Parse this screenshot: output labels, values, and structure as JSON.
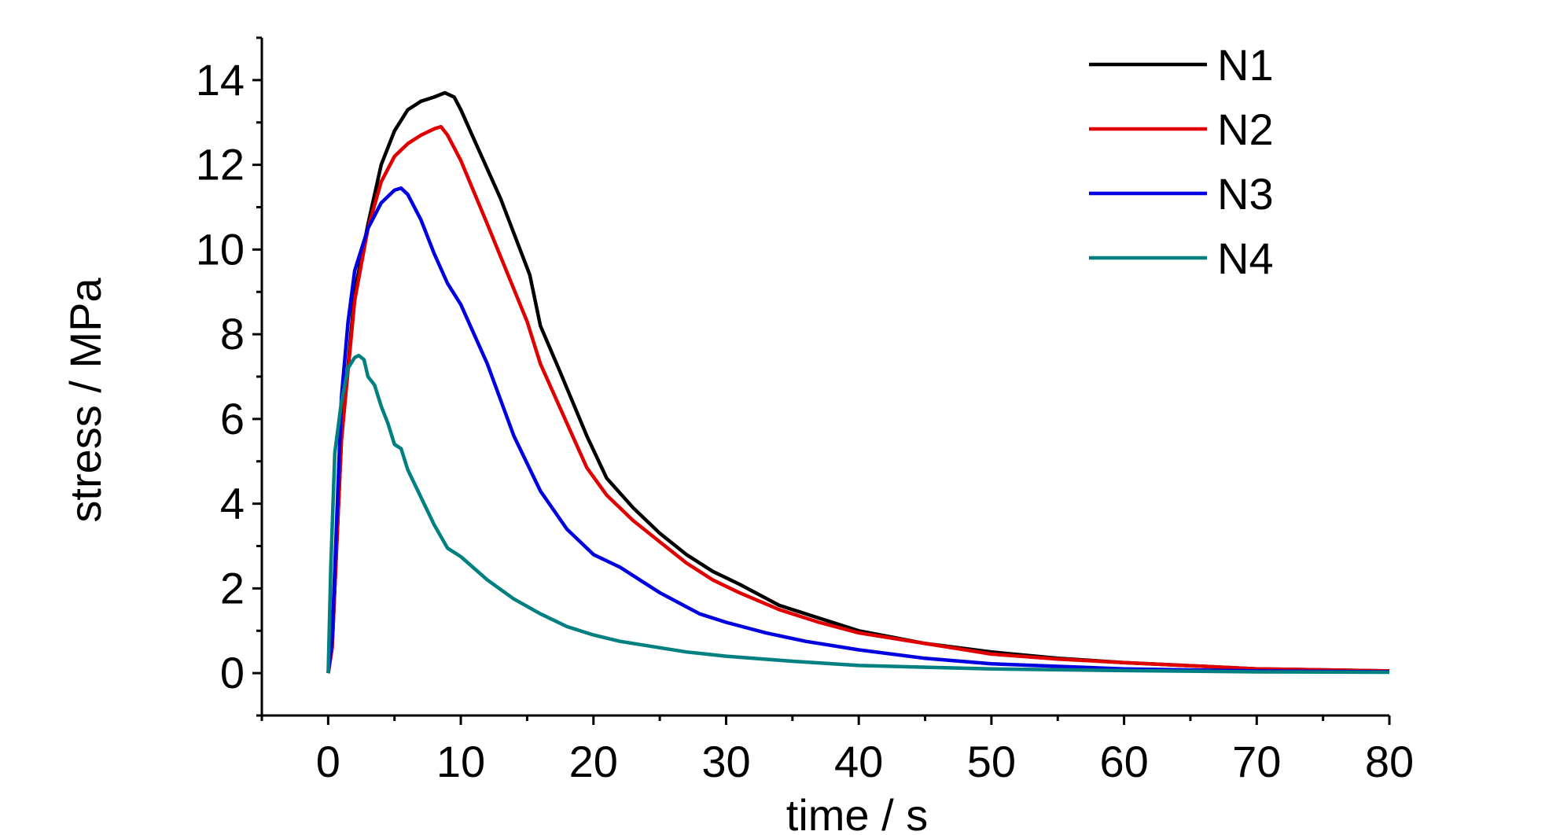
{
  "chart_data": {
    "type": "line",
    "title": "",
    "xlabel": "time / s",
    "ylabel": "stress / MPa",
    "xlim": [
      -5,
      80
    ],
    "ylim": [
      -1,
      15
    ],
    "x_ticks": [
      0,
      10,
      20,
      30,
      40,
      50,
      60,
      70,
      80
    ],
    "y_ticks": [
      0,
      2,
      4,
      6,
      8,
      10,
      12,
      14
    ],
    "x_tick_labels": [
      "0",
      "10",
      "20",
      "30",
      "40",
      "50",
      "60",
      "70",
      "80"
    ],
    "y_tick_labels": [
      "0",
      "2",
      "4",
      "6",
      "8",
      "10",
      "12",
      "14"
    ],
    "grid": false,
    "legend_position": "top-right",
    "series": [
      {
        "name": "N1",
        "color": "#000000",
        "x": [
          0,
          0.3,
          1,
          2,
          3,
          4,
          5,
          6,
          7,
          8,
          8.8,
          9.5,
          10,
          11,
          13,
          15.2,
          16,
          17.5,
          19.5,
          21,
          23,
          25,
          27,
          29,
          31,
          34,
          37,
          40,
          45,
          50,
          55,
          60,
          70,
          80
        ],
        "y": [
          0,
          0.6,
          5.5,
          9.0,
          10.6,
          12.0,
          12.8,
          13.3,
          13.5,
          13.6,
          13.7,
          13.6,
          13.3,
          12.6,
          11.2,
          9.4,
          8.2,
          7.1,
          5.6,
          4.6,
          3.9,
          3.3,
          2.8,
          2.4,
          2.1,
          1.6,
          1.3,
          1.0,
          0.7,
          0.5,
          0.35,
          0.25,
          0.1,
          0.05
        ]
      },
      {
        "name": "N2",
        "color": "#e00000",
        "x": [
          0,
          0.3,
          1,
          2,
          3,
          4,
          5,
          6,
          7,
          8,
          8.5,
          9,
          10,
          12,
          15,
          16,
          18,
          19.5,
          21,
          23,
          25,
          27,
          29,
          31,
          34,
          37,
          40,
          45,
          50,
          55,
          60,
          70,
          80
        ],
        "y": [
          0,
          0.6,
          5.5,
          8.8,
          10.5,
          11.6,
          12.2,
          12.5,
          12.7,
          12.85,
          12.9,
          12.7,
          12.1,
          10.6,
          8.3,
          7.3,
          5.9,
          4.85,
          4.2,
          3.6,
          3.1,
          2.6,
          2.2,
          1.9,
          1.5,
          1.2,
          0.95,
          0.7,
          0.45,
          0.33,
          0.25,
          0.1,
          0.05
        ]
      },
      {
        "name": "N3",
        "color": "#0000e0",
        "x": [
          0,
          0.3,
          1,
          1.5,
          2,
          3,
          4,
          5,
          5.5,
          6,
          7,
          8,
          9,
          10,
          12,
          14,
          16,
          18,
          20,
          22,
          25,
          28,
          30,
          33,
          36,
          40,
          45,
          50,
          60,
          70,
          80
        ],
        "y": [
          0,
          0.8,
          6.5,
          8.3,
          9.5,
          10.5,
          11.1,
          11.4,
          11.45,
          11.3,
          10.7,
          9.9,
          9.2,
          8.7,
          7.3,
          5.6,
          4.3,
          3.4,
          2.8,
          2.5,
          1.9,
          1.4,
          1.2,
          0.95,
          0.75,
          0.55,
          0.35,
          0.22,
          0.1,
          0.05,
          0.03
        ]
      },
      {
        "name": "N4",
        "color": "#008080",
        "x": [
          0,
          0.2,
          0.5,
          1,
          1.5,
          2,
          2.3,
          2.7,
          3,
          3.5,
          4,
          4.5,
          5,
          5.5,
          6,
          7,
          8,
          9,
          10,
          12,
          14,
          16,
          18,
          20,
          22,
          25,
          27,
          30,
          35,
          40,
          50,
          60,
          70,
          80
        ],
        "y": [
          0,
          2.5,
          5.2,
          6.4,
          7.2,
          7.45,
          7.5,
          7.4,
          7.0,
          6.8,
          6.3,
          5.9,
          5.4,
          5.3,
          4.8,
          4.15,
          3.5,
          2.95,
          2.75,
          2.2,
          1.75,
          1.4,
          1.1,
          0.9,
          0.75,
          0.6,
          0.5,
          0.4,
          0.28,
          0.18,
          0.1,
          0.06,
          0.03,
          0.02
        ]
      }
    ]
  }
}
